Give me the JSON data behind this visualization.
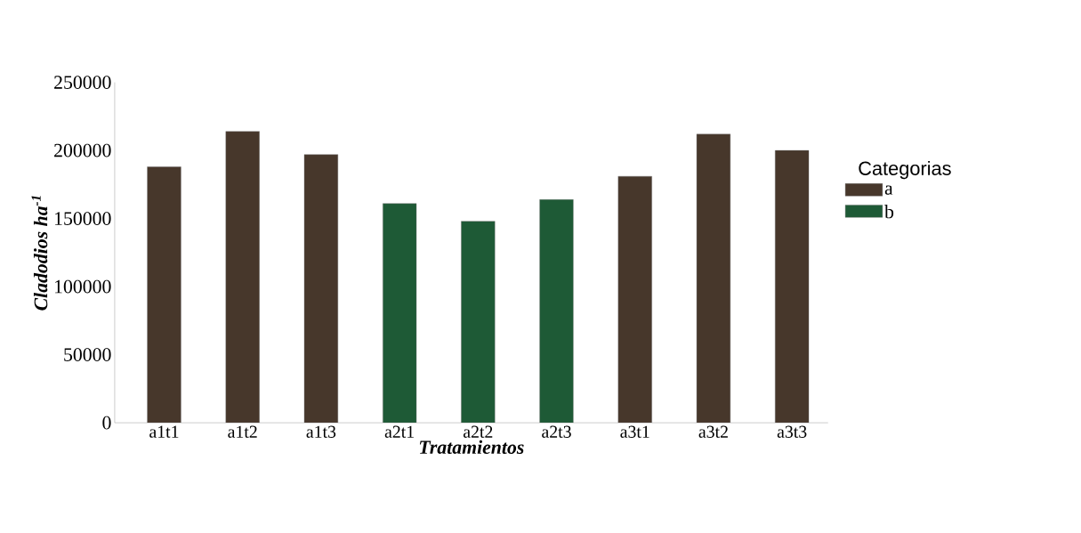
{
  "chart_data": {
    "type": "bar",
    "xlabel": "Tratamientos",
    "ylabel": "Cladodios ha$^{-1}$",
    "legend_title": "Categorias",
    "categories": [
      "a1t1",
      "a1t2",
      "a1t3",
      "a2t1",
      "a2t2",
      "a2t3",
      "a3t1",
      "a3t2",
      "a3t3"
    ],
    "series": [
      {
        "name": "a",
        "color": "#47372b",
        "values": [
          188000,
          214000,
          197000,
          null,
          null,
          null,
          181000,
          212000,
          200000
        ]
      },
      {
        "name": "b",
        "color": "#1e5a36",
        "values": [
          null,
          null,
          null,
          161000,
          148000,
          164000,
          null,
          null,
          null
        ]
      }
    ],
    "ylim": [
      0,
      250000
    ],
    "yticks": [
      0,
      50000,
      100000,
      150000,
      200000,
      250000
    ],
    "grid": false,
    "legend": "right"
  }
}
